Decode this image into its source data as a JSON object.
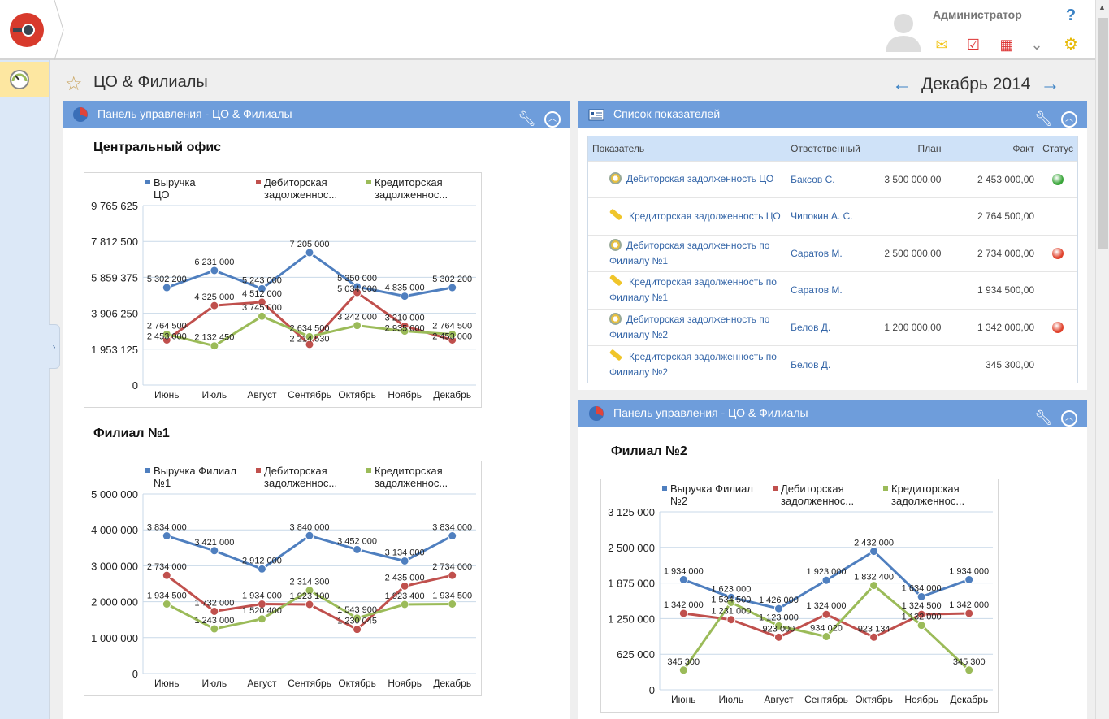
{
  "header": {
    "user_name": "Администратор",
    "help": "?"
  },
  "page": {
    "title": "ЦО & Филиалы",
    "period": "Декабрь 2014"
  },
  "panels": {
    "left": {
      "title": "Панель управления - ЦО & Филиалы"
    },
    "list": {
      "title": "Список показателей"
    },
    "right": {
      "title": "Панель управления - ЦО & Филиалы"
    }
  },
  "table": {
    "columns": [
      "Показатель",
      "Ответственный",
      "План",
      "Факт",
      "Статус"
    ],
    "rows": [
      {
        "name": "Дебиторская задолженность ЦО",
        "type": "gauge",
        "owner": "Баксов С.",
        "plan": "3 500 000,00",
        "fact": "2 453 000,00",
        "status": "green"
      },
      {
        "name": "Кредиторская задолженность ЦО",
        "type": "ruler",
        "owner": "Чипокин А. С.",
        "plan": "",
        "fact": "2 764 500,00",
        "status": ""
      },
      {
        "name": "Дебиторская задолженность по Филиалу №1",
        "type": "gauge",
        "owner": "Саратов М.",
        "plan": "2 500 000,00",
        "fact": "2 734 000,00",
        "status": "red"
      },
      {
        "name": "Кредиторская задолженность по Филиалу №1",
        "type": "ruler",
        "owner": "Саратов М.",
        "plan": "",
        "fact": "1 934 500,00",
        "status": ""
      },
      {
        "name": "Дебиторская задолженность по Филиалу №2",
        "type": "gauge",
        "owner": "Белов Д.",
        "plan": "1 200 000,00",
        "fact": "1 342 000,00",
        "status": "red"
      },
      {
        "name": "Кредиторская задолженность по Филиалу №2",
        "type": "ruler",
        "owner": "Белов Д.",
        "plan": "",
        "fact": "345 300,00",
        "status": ""
      }
    ]
  },
  "colors": {
    "blue": "#4f7fbf",
    "red": "#c0504d",
    "green": "#9bbb59",
    "status_green": "#3aa63a",
    "status_red": "#e0422c"
  },
  "chart_data": [
    {
      "id": "co",
      "title": "Центральный офис",
      "type": "line",
      "categories": [
        "Июнь",
        "Июль",
        "Август",
        "Сентябрь",
        "Октябрь",
        "Ноябрь",
        "Декабрь"
      ],
      "yticks": [
        "0",
        "1 953 125",
        "3 906 250",
        "5 859 375",
        "7 812 500",
        "9 765 625"
      ],
      "ylim": [
        0,
        9765625
      ],
      "series": [
        {
          "name": "Выручка ЦО",
          "color": "#4f7fbf",
          "values": [
            5302200,
            6231000,
            5243000,
            7205000,
            5350000,
            4835000,
            5302200
          ]
        },
        {
          "name": "Дебиторская задолженнос...",
          "color": "#c0504d",
          "values": [
            2453000,
            4325000,
            4512000,
            2214530,
            5034000,
            3210000,
            2453000
          ]
        },
        {
          "name": "Кредиторская задолженнос...",
          "color": "#9bbb59",
          "values": [
            2764500,
            2132450,
            3745000,
            2634500,
            3242000,
            2935000,
            2764500
          ]
        }
      ]
    },
    {
      "id": "f1",
      "title": "Филиал №1",
      "type": "line",
      "categories": [
        "Июнь",
        "Июль",
        "Август",
        "Сентябрь",
        "Октябрь",
        "Ноябрь",
        "Декабрь"
      ],
      "yticks": [
        "0",
        "1 000 000",
        "2 000 000",
        "3 000 000",
        "4 000 000",
        "5 000 000"
      ],
      "ylim": [
        0,
        5000000
      ],
      "series": [
        {
          "name": "Выручка Филиал №1",
          "color": "#4f7fbf",
          "values": [
            3834000,
            3421000,
            2912000,
            3840000,
            3452000,
            3134000,
            3834000
          ]
        },
        {
          "name": "Дебиторская задолженнос...",
          "color": "#c0504d",
          "values": [
            2734000,
            1732000,
            1934000,
            1923100,
            1230045,
            2435000,
            2734000
          ]
        },
        {
          "name": "Кредиторская задолженнос...",
          "color": "#9bbb59",
          "values": [
            1934500,
            1243000,
            1520400,
            2314300,
            1543900,
            1923400,
            1934500
          ]
        }
      ]
    },
    {
      "id": "f2",
      "title": "Филиал №2",
      "type": "line",
      "categories": [
        "Июнь",
        "Июль",
        "Август",
        "Сентябрь",
        "Октябрь",
        "Ноябрь",
        "Декабрь"
      ],
      "yticks": [
        "0",
        "625 000",
        "1 250 000",
        "1 875 000",
        "2 500 000",
        "3 125 000"
      ],
      "ylim": [
        0,
        3125000
      ],
      "series": [
        {
          "name": "Выручка Филиал №2",
          "color": "#4f7fbf",
          "values": [
            1934000,
            1623000,
            1426000,
            1923000,
            2432000,
            1634000,
            1934000
          ]
        },
        {
          "name": "Дебиторская задолженнос...",
          "color": "#c0504d",
          "values": [
            1342000,
            1231000,
            923000,
            1324000,
            923134,
            1324500,
            1342000
          ]
        },
        {
          "name": "Кредиторская задолженнос...",
          "color": "#9bbb59",
          "values": [
            345300,
            1534500,
            1123000,
            934020,
            1832400,
            1132000,
            345300
          ]
        }
      ]
    }
  ]
}
